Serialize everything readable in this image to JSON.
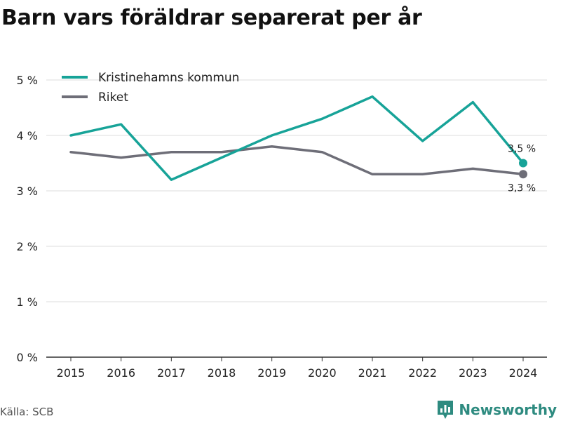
{
  "title": "Barn vars föräldrar separerat per år",
  "source": "Källa: SCB",
  "brand": "Newsworthy",
  "colors": {
    "series_primary": "#17a398",
    "series_secondary": "#6e6e78",
    "grid": "#dddddd",
    "axis": "#333333",
    "brand": "#2e8b80"
  },
  "chart_data": {
    "type": "line",
    "title": "Barn vars föräldrar separerat per år",
    "xlabel": "",
    "ylabel": "",
    "x": [
      "2015",
      "2016",
      "2017",
      "2018",
      "2019",
      "2020",
      "2021",
      "2022",
      "2023",
      "2024"
    ],
    "ylim": [
      0,
      5
    ],
    "yticks": [
      0,
      1,
      2,
      3,
      4,
      5
    ],
    "ytick_labels": [
      "0 %",
      "1 %",
      "2 %",
      "3 %",
      "4 %",
      "5 %"
    ],
    "grid": true,
    "legend_position": "top-left",
    "series": [
      {
        "name": "Kristinehamns kommun",
        "values": [
          4.0,
          4.2,
          3.2,
          3.6,
          4.0,
          4.3,
          4.7,
          3.9,
          4.6,
          3.5
        ],
        "end_label": "3,5 %"
      },
      {
        "name": "Riket",
        "values": [
          3.7,
          3.6,
          3.7,
          3.7,
          3.8,
          3.7,
          3.3,
          3.3,
          3.4,
          3.3
        ],
        "end_label": "3,3 %"
      }
    ]
  }
}
